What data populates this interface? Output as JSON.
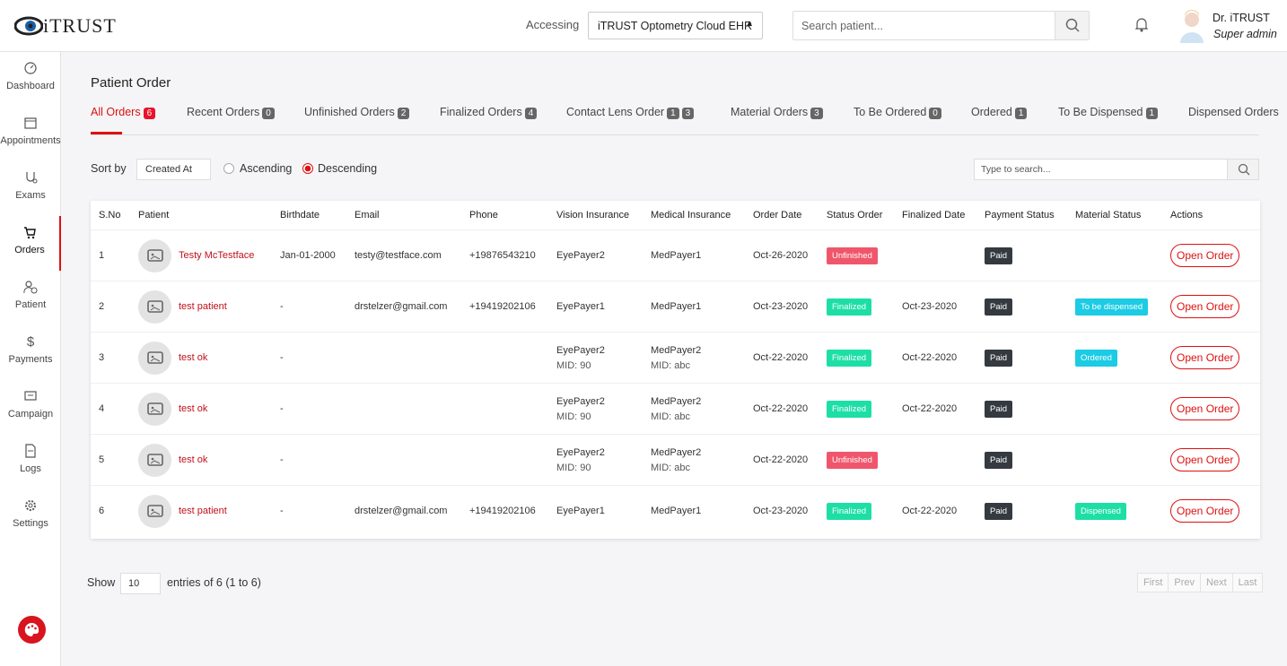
{
  "header": {
    "logo": "iTRUST",
    "accessing_label": "Accessing",
    "accessing_value": "iTRUST Optometry Cloud EHR",
    "search_placeholder": "Search patient...",
    "user_name": "Dr. iTRUST",
    "user_role": "Super admin"
  },
  "sidebar": [
    "Dashboard",
    "Appointments",
    "Exams",
    "Orders",
    "Patient",
    "Payments",
    "Campaign",
    "Logs",
    "Settings"
  ],
  "page_title": "Patient Order",
  "tabs": [
    {
      "label": "All Orders",
      "counts": [
        6
      ]
    },
    {
      "label": "Recent Orders",
      "counts": [
        0
      ]
    },
    {
      "label": "Unfinished Orders",
      "counts": [
        2
      ]
    },
    {
      "label": "Finalized Orders",
      "counts": [
        4
      ]
    },
    {
      "label": "Contact Lens Order",
      "counts": [
        1,
        3
      ]
    },
    {
      "label": "Material Orders",
      "counts": [
        3
      ]
    },
    {
      "label": "To Be Ordered",
      "counts": [
        0
      ]
    },
    {
      "label": "Ordered",
      "counts": [
        1
      ]
    },
    {
      "label": "To Be Dispensed",
      "counts": [
        1
      ]
    },
    {
      "label": "Dispensed Orders",
      "counts": []
    }
  ],
  "sort": {
    "label": "Sort by",
    "field": "Created At",
    "options": [
      "Ascending",
      "Descending"
    ]
  },
  "table_search_placeholder": "Type to search...",
  "table": {
    "columns": [
      "S.No",
      "Patient",
      "Birthdate",
      "Email",
      "Phone",
      "Vision Insurance",
      "Medical Insurance",
      "Order Date",
      "Status Order",
      "Finalized Date",
      "Payment Status",
      "Material Status",
      "Actions"
    ],
    "action_label": "Open Order",
    "rows": [
      {
        "sno": 1,
        "patient": "Testy McTestface",
        "birthdate": "Jan-01-2000",
        "email": "testy@testface.com",
        "phone": "+19876543210",
        "vision": [
          "EyePayer2"
        ],
        "medical": [
          "MedPayer1"
        ],
        "order_date": "Oct-26-2020",
        "status": {
          "text": "Unfinished",
          "color": "#f0566b"
        },
        "payment": {
          "text": "Paid",
          "color": "#343a40"
        }
      },
      {
        "sno": 2,
        "patient": "test patient",
        "birthdate": "-",
        "email": "drstelzer@gmail.com",
        "phone": "+19419202106",
        "vision": [
          "EyePayer1"
        ],
        "medical": [
          "MedPayer1"
        ],
        "order_date": "Oct-23-2020",
        "status": {
          "text": "Finalized",
          "color": "#1ddfa6"
        },
        "finalized_date": "Oct-23-2020",
        "payment": {
          "text": "Paid",
          "color": "#343a40"
        },
        "material": {
          "text": "To be dispensed",
          "color": "#1ccbe4"
        }
      },
      {
        "sno": 3,
        "patient": "test ok",
        "birthdate": "-",
        "vision": [
          "EyePayer2",
          "MID: 90"
        ],
        "medical": [
          "MedPayer2",
          "MID: abc"
        ],
        "order_date": "Oct-22-2020",
        "status": {
          "text": "Finalized",
          "color": "#1ddfa6"
        },
        "finalized_date": "Oct-22-2020",
        "payment": {
          "text": "Paid",
          "color": "#343a40"
        },
        "material": {
          "text": "Ordered",
          "color": "#1ccbe4"
        }
      },
      {
        "sno": 4,
        "patient": "test ok",
        "birthdate": "-",
        "vision": [
          "EyePayer2",
          "MID: 90"
        ],
        "medical": [
          "MedPayer2",
          "MID: abc"
        ],
        "order_date": "Oct-22-2020",
        "status": {
          "text": "Finalized",
          "color": "#1ddfa6"
        },
        "finalized_date": "Oct-22-2020",
        "payment": {
          "text": "Paid",
          "color": "#343a40"
        }
      },
      {
        "sno": 5,
        "patient": "test ok",
        "birthdate": "-",
        "vision": [
          "EyePayer2",
          "MID: 90"
        ],
        "medical": [
          "MedPayer2",
          "MID: abc"
        ],
        "order_date": "Oct-22-2020",
        "status": {
          "text": "Unfinished",
          "color": "#f0566b"
        },
        "payment": {
          "text": "Paid",
          "color": "#343a40"
        }
      },
      {
        "sno": 6,
        "patient": "test patient",
        "birthdate": "-",
        "email": "drstelzer@gmail.com",
        "phone": "+19419202106",
        "vision": [
          "EyePayer1"
        ],
        "medical": [
          "MedPayer1"
        ],
        "order_date": "Oct-23-2020",
        "status": {
          "text": "Finalized",
          "color": "#1ddfa6"
        },
        "finalized_date": "Oct-22-2020",
        "payment": {
          "text": "Paid",
          "color": "#343a40"
        },
        "material": {
          "text": "Dispensed",
          "color": "#1ddfa6"
        }
      }
    ]
  },
  "footer": {
    "show_label": "Show",
    "page_size": 10,
    "entries_text": "entries of 6 (1 to 6)",
    "pagination": [
      "First",
      "Prev",
      "Next",
      "Last"
    ]
  }
}
